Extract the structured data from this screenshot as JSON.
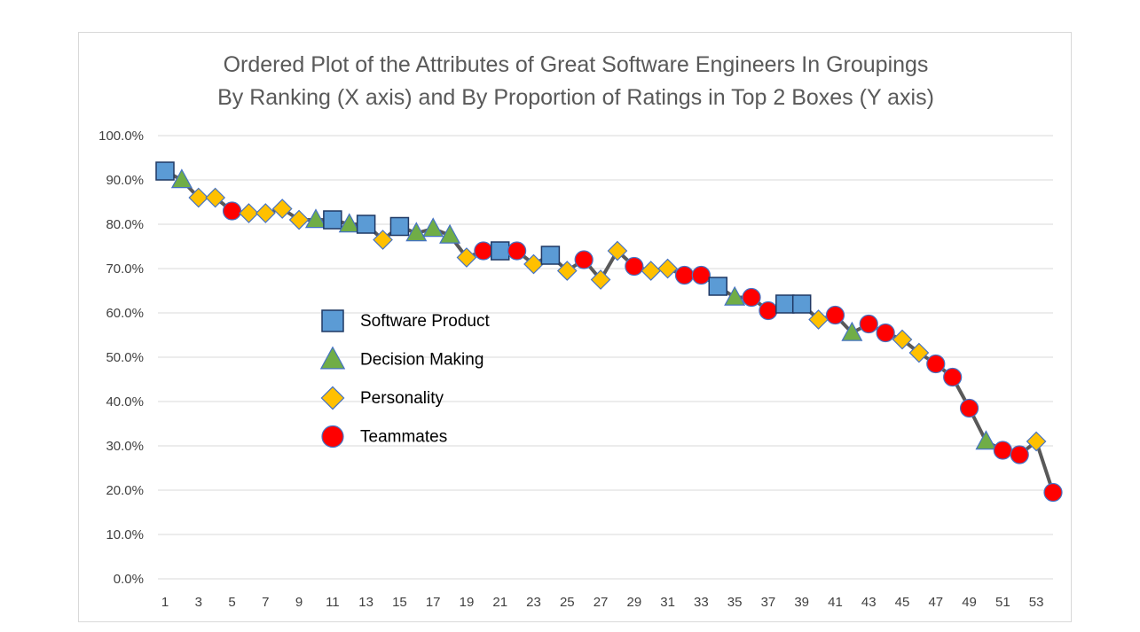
{
  "chart_data": {
    "type": "line",
    "title_lines": [
      "Ordered Plot of the Attributes of Great Software Engineers In Groupings",
      "By Ranking (X axis) and By Proportion of Ratings in Top 2 Boxes (Y axis)"
    ],
    "xlabel": "",
    "ylabel": "",
    "xlim": [
      1,
      54
    ],
    "ylim": [
      0,
      100
    ],
    "x_tick_labels": [
      "1",
      "3",
      "5",
      "7",
      "9",
      "11",
      "13",
      "15",
      "17",
      "19",
      "21",
      "23",
      "25",
      "27",
      "29",
      "31",
      "33",
      "35",
      "37",
      "39",
      "41",
      "43",
      "45",
      "47",
      "49",
      "51",
      "53"
    ],
    "y_tick_labels": [
      "0.0%",
      "10.0%",
      "20.0%",
      "30.0%",
      "40.0%",
      "50.0%",
      "60.0%",
      "70.0%",
      "80.0%",
      "90.0%",
      "100.0%"
    ],
    "grid": "horizontal",
    "legend_placement": "center-left",
    "line_color": "#595959",
    "categories": [
      {
        "key": "product",
        "name": "Software Product",
        "marker": "square",
        "color": "#5b9bd5"
      },
      {
        "key": "decision",
        "name": "Decision Making",
        "marker": "triangle",
        "color": "#70ad47"
      },
      {
        "key": "personality",
        "name": "Personality",
        "marker": "diamond",
        "color": "#ffc000"
      },
      {
        "key": "teammates",
        "name": "Teammates",
        "marker": "circle",
        "color": "#ff0000"
      }
    ],
    "points": [
      {
        "x": 1,
        "y": 92.0,
        "group": "product"
      },
      {
        "x": 2,
        "y": 90.0,
        "group": "decision"
      },
      {
        "x": 3,
        "y": 86.0,
        "group": "personality"
      },
      {
        "x": 4,
        "y": 86.0,
        "group": "personality"
      },
      {
        "x": 5,
        "y": 83.0,
        "group": "teammates"
      },
      {
        "x": 6,
        "y": 82.5,
        "group": "personality"
      },
      {
        "x": 7,
        "y": 82.5,
        "group": "personality"
      },
      {
        "x": 8,
        "y": 83.5,
        "group": "personality"
      },
      {
        "x": 9,
        "y": 81.0,
        "group": "personality"
      },
      {
        "x": 10,
        "y": 81.0,
        "group": "decision"
      },
      {
        "x": 11,
        "y": 81.0,
        "group": "product"
      },
      {
        "x": 12,
        "y": 80.0,
        "group": "decision"
      },
      {
        "x": 13,
        "y": 80.0,
        "group": "product"
      },
      {
        "x": 14,
        "y": 76.5,
        "group": "personality"
      },
      {
        "x": 15,
        "y": 79.5,
        "group": "product"
      },
      {
        "x": 16,
        "y": 78.0,
        "group": "decision"
      },
      {
        "x": 17,
        "y": 79.0,
        "group": "decision"
      },
      {
        "x": 18,
        "y": 77.5,
        "group": "decision"
      },
      {
        "x": 19,
        "y": 72.5,
        "group": "personality"
      },
      {
        "x": 20,
        "y": 74.0,
        "group": "teammates"
      },
      {
        "x": 21,
        "y": 74.0,
        "group": "product"
      },
      {
        "x": 22,
        "y": 74.0,
        "group": "teammates"
      },
      {
        "x": 23,
        "y": 71.0,
        "group": "personality"
      },
      {
        "x": 24,
        "y": 73.0,
        "group": "product"
      },
      {
        "x": 25,
        "y": 69.5,
        "group": "personality"
      },
      {
        "x": 26,
        "y": 72.0,
        "group": "teammates"
      },
      {
        "x": 27,
        "y": 67.5,
        "group": "personality"
      },
      {
        "x": 28,
        "y": 74.0,
        "group": "personality"
      },
      {
        "x": 29,
        "y": 70.5,
        "group": "teammates"
      },
      {
        "x": 30,
        "y": 69.5,
        "group": "personality"
      },
      {
        "x": 31,
        "y": 70.0,
        "group": "personality"
      },
      {
        "x": 32,
        "y": 68.5,
        "group": "teammates"
      },
      {
        "x": 33,
        "y": 68.5,
        "group": "teammates"
      },
      {
        "x": 34,
        "y": 66.0,
        "group": "product"
      },
      {
        "x": 35,
        "y": 63.5,
        "group": "decision"
      },
      {
        "x": 36,
        "y": 63.5,
        "group": "teammates"
      },
      {
        "x": 37,
        "y": 60.5,
        "group": "teammates"
      },
      {
        "x": 38,
        "y": 62.0,
        "group": "product"
      },
      {
        "x": 39,
        "y": 62.0,
        "group": "product"
      },
      {
        "x": 40,
        "y": 58.5,
        "group": "personality"
      },
      {
        "x": 41,
        "y": 59.5,
        "group": "teammates"
      },
      {
        "x": 42,
        "y": 55.5,
        "group": "decision"
      },
      {
        "x": 43,
        "y": 57.5,
        "group": "teammates"
      },
      {
        "x": 44,
        "y": 55.5,
        "group": "teammates"
      },
      {
        "x": 45,
        "y": 54.0,
        "group": "personality"
      },
      {
        "x": 46,
        "y": 51.0,
        "group": "personality"
      },
      {
        "x": 47,
        "y": 48.5,
        "group": "teammates"
      },
      {
        "x": 48,
        "y": 45.5,
        "group": "teammates"
      },
      {
        "x": 49,
        "y": 38.5,
        "group": "teammates"
      },
      {
        "x": 50,
        "y": 31.0,
        "group": "decision"
      },
      {
        "x": 51,
        "y": 29.0,
        "group": "teammates"
      },
      {
        "x": 52,
        "y": 28.0,
        "group": "teammates"
      },
      {
        "x": 53,
        "y": 31.0,
        "group": "personality"
      },
      {
        "x": 54,
        "y": 19.5,
        "group": "teammates"
      }
    ]
  }
}
